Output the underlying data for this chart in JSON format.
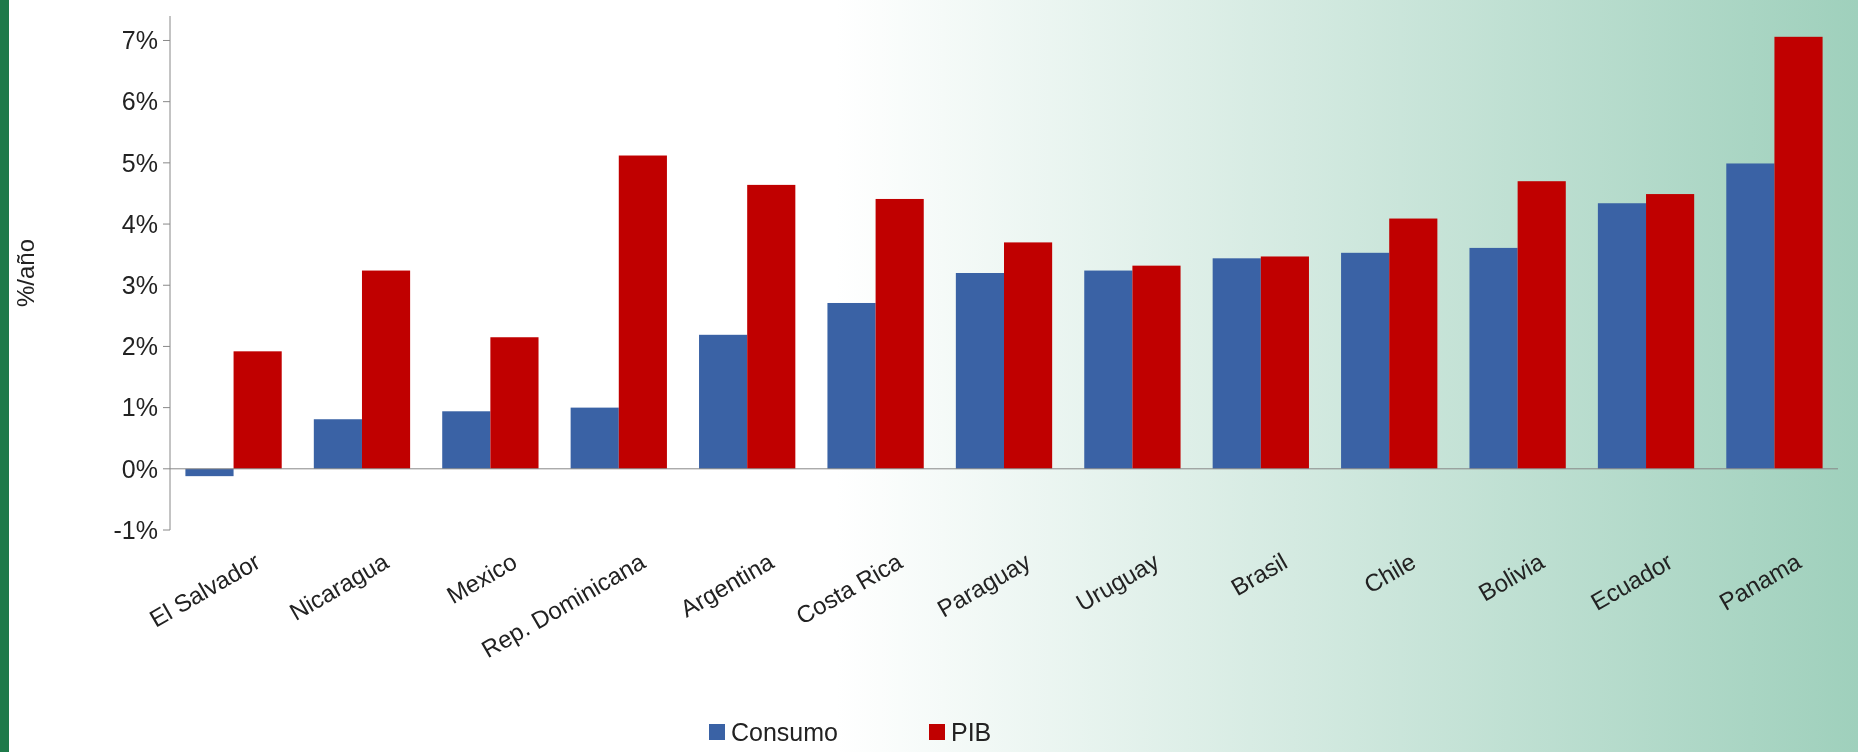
{
  "chart_data": {
    "type": "bar",
    "ylabel": "%/año",
    "categories": [
      "El Salvador",
      "Nicaragua",
      "Mexico",
      "Rep. Dominicana",
      "Argentina",
      "Costa Rica",
      "Paraguay",
      "Uruguay",
      "Brasil",
      "Chile",
      "Bolivia",
      "Ecuador",
      "Panama"
    ],
    "series": [
      {
        "name": "Consumo",
        "color": "#3a62a5",
        "values": [
          -0.12,
          0.81,
          0.94,
          1.0,
          2.19,
          2.71,
          3.2,
          3.24,
          3.44,
          3.53,
          3.61,
          4.34,
          4.99
        ]
      },
      {
        "name": "PIB",
        "color": "#c00000",
        "values": [
          1.92,
          3.24,
          2.15,
          5.12,
          4.64,
          4.41,
          3.7,
          3.32,
          3.47,
          4.09,
          4.7,
          4.49,
          7.06
        ]
      }
    ],
    "ylim": [
      -1,
      7.4
    ],
    "yticks": [
      {
        "value": -1,
        "label": "-1%"
      },
      {
        "value": 0,
        "label": "0%"
      },
      {
        "value": 1,
        "label": "1%"
      },
      {
        "value": 2,
        "label": "2%"
      },
      {
        "value": 3,
        "label": "3%"
      },
      {
        "value": 4,
        "label": "4%"
      },
      {
        "value": 5,
        "label": "5%"
      },
      {
        "value": 6,
        "label": "6%"
      },
      {
        "value": 7,
        "label": "7%"
      }
    ],
    "legend": "bottom"
  }
}
